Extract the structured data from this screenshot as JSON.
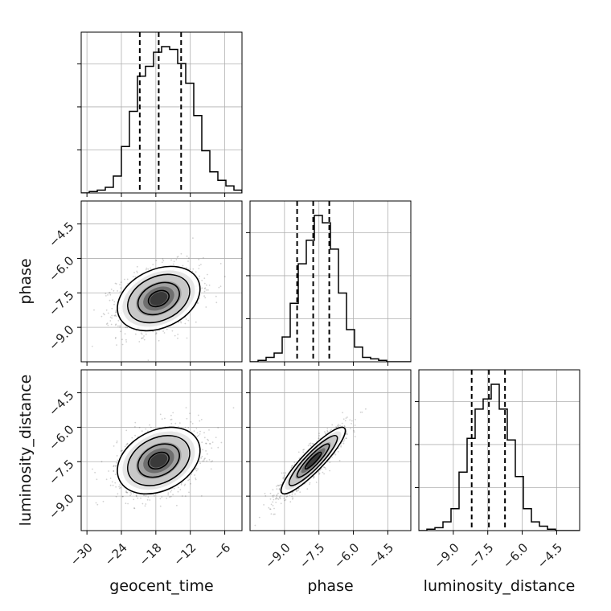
{
  "chart_data": {
    "type": "corner",
    "parameters": [
      "geocent_time",
      "phase",
      "luminosity_distance"
    ],
    "axis_labels": {
      "geocent_time": "geocent_time",
      "phase": "phase",
      "luminosity_distance": "luminosity_distance"
    },
    "ranges": {
      "geocent_time": [
        -31,
        -3
      ],
      "phase": [
        -10.5,
        -3.5
      ],
      "luminosity_distance": [
        -10.5,
        -3.5
      ]
    },
    "ticks": {
      "geocent_time": [
        -30,
        -24,
        -18,
        -12,
        -6
      ],
      "phase": [
        -9.0,
        -7.5,
        -6.0,
        -4.5
      ],
      "luminosity_distance": [
        -9.0,
        -7.5,
        -6.0,
        -4.5
      ]
    },
    "tick_labels": {
      "geocent_time": [
        "−30",
        "−24",
        "−18",
        "−12",
        "−6"
      ],
      "phase": [
        "−9.0",
        "−7.5",
        "−6.0",
        "−4.5"
      ],
      "luminosity_distance": [
        "−9.0",
        "−7.5",
        "−6.0",
        "−4.5"
      ]
    },
    "histograms": {
      "geocent_time": {
        "edges_start": -31,
        "bin_width": 1.4,
        "counts": [
          0,
          1,
          2,
          4,
          12,
          33,
          58,
          83,
          90,
          100,
          104,
          102,
          92,
          78,
          55,
          30,
          15,
          9,
          5,
          2
        ]
      },
      "phase": {
        "edges_start": -10.5,
        "bin_width": 0.35,
        "counts": [
          0,
          1,
          3,
          6,
          17,
          40,
          67,
          83,
          100,
          95,
          77,
          47,
          22,
          10,
          3,
          2,
          1,
          0,
          0,
          0
        ]
      },
      "luminosity_distance": {
        "edges_start": -10.5,
        "bin_width": 0.35,
        "counts": [
          0,
          1,
          2,
          6,
          15,
          40,
          63,
          83,
          90,
          100,
          83,
          62,
          37,
          15,
          6,
          3,
          1,
          0,
          0,
          0
        ]
      }
    },
    "quantiles": {
      "geocent_time": [
        -20.8,
        -17.5,
        -13.6
      ],
      "phase": [
        -8.45,
        -7.75,
        -7.05
      ],
      "luminosity_distance": [
        -8.2,
        -7.45,
        -6.75
      ]
    },
    "correlations": {
      "phase|geocent_time": 0.3,
      "luminosity_distance|geocent_time": 0.3,
      "luminosity_distance|phase": 0.9
    },
    "grid": true,
    "line_color": "#000000",
    "contour_levels_sigma": [
      0.5,
      1.0,
      1.5,
      2.0
    ]
  }
}
